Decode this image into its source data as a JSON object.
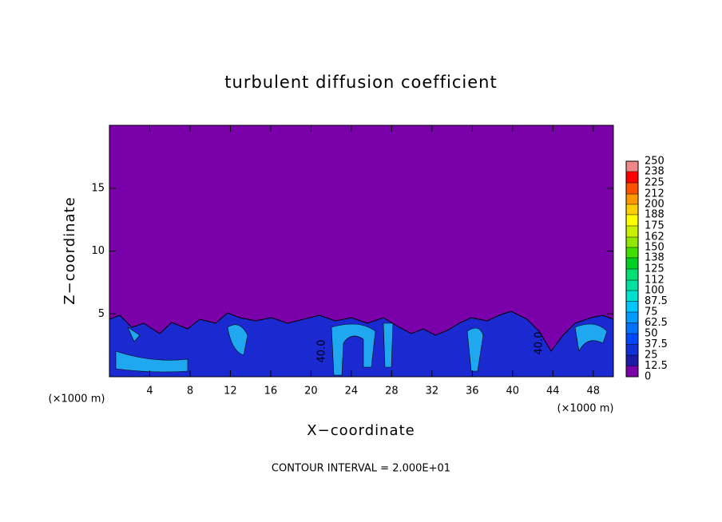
{
  "chart_data": {
    "type": "contour",
    "title": "turbulent diffusion coefficient",
    "x_label": "X−coordinate",
    "y_label": "Z−coordinate",
    "x_unit_left": "(×1000 m)",
    "x_unit_right": "(×1000 m)",
    "footer": "CONTOUR INTERVAL = 2.000E+01",
    "contour_labels": [
      "40.0",
      "40.0"
    ],
    "xlim": [
      0,
      50
    ],
    "xticks": [
      4,
      8,
      12,
      16,
      20,
      24,
      28,
      32,
      36,
      40,
      44,
      48
    ],
    "ylim": [
      0,
      20
    ],
    "yticks": [
      5,
      10,
      15
    ],
    "clim": [
      0,
      250
    ],
    "levels": [
      0,
      12.5,
      25,
      37.5,
      50,
      62.5,
      75,
      87.5,
      100,
      112,
      125,
      138,
      150,
      162,
      175,
      188,
      200,
      212,
      225,
      238,
      250
    ],
    "colors": [
      "#7a00aa",
      "#1c1aa8",
      "#1030d8",
      "#0048ff",
      "#0070ff",
      "#009cff",
      "#00c8ff",
      "#00e0d0",
      "#00e0a0",
      "#00e070",
      "#00d020",
      "#40e000",
      "#90e800",
      "#c8f000",
      "#ffff00",
      "#ffd000",
      "#ff9800",
      "#ff5000",
      "#ff0000",
      "#f08888"
    ]
  }
}
